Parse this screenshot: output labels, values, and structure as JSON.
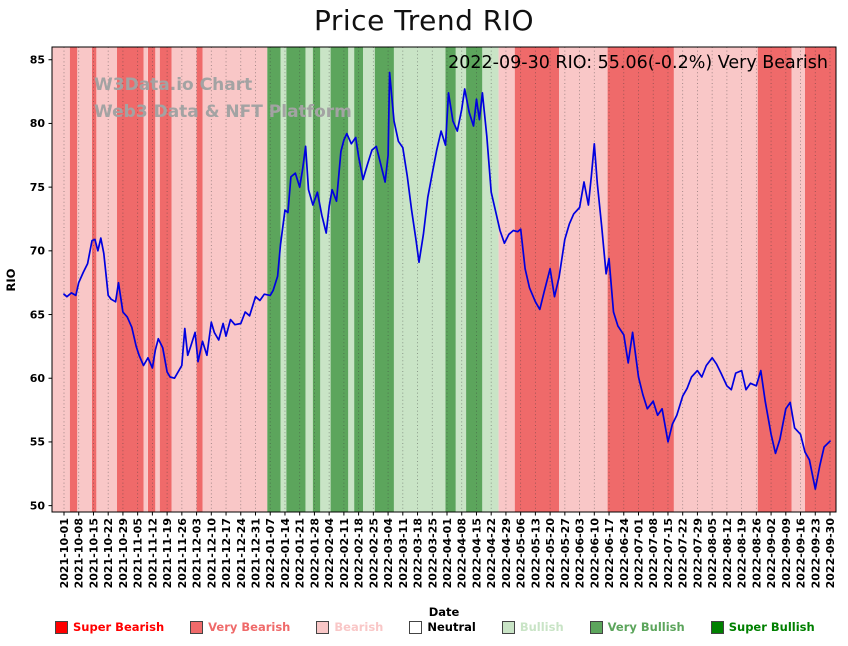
{
  "title": "Price Trend RIO",
  "annotation": "2022-09-30 RIO: 55.06(-0.2%) Very Bearish",
  "watermark": {
    "line1": "W3Data.io Chart",
    "line2": "Web3 Data & NFT Platform"
  },
  "chart_data": {
    "type": "line",
    "title": "Price Trend RIO",
    "xlabel": "Date",
    "ylabel": "RIO",
    "ylim": [
      49.5,
      86
    ],
    "yticks": [
      50,
      55,
      60,
      65,
      70,
      75,
      80,
      85
    ],
    "grid": "vertical-dotted",
    "legend_position": "bottom",
    "x_tick_labels": [
      "2021-10-01",
      "2021-10-08",
      "2021-10-15",
      "2021-10-22",
      "2021-10-29",
      "2021-11-05",
      "2021-11-12",
      "2021-11-19",
      "2021-11-26",
      "2021-12-03",
      "2021-12-10",
      "2021-12-17",
      "2021-12-24",
      "2021-12-31",
      "2022-01-07",
      "2022-01-14",
      "2022-01-21",
      "2022-01-28",
      "2022-02-04",
      "2022-02-11",
      "2022-02-18",
      "2022-02-25",
      "2022-03-04",
      "2022-03-11",
      "2022-03-18",
      "2022-03-25",
      "2022-04-01",
      "2022-04-08",
      "2022-04-15",
      "2022-04-22",
      "2022-04-29",
      "2022-05-06",
      "2022-05-13",
      "2022-05-20",
      "2022-05-27",
      "2022-06-03",
      "2022-06-10",
      "2022-06-17",
      "2022-06-24",
      "2022-07-01",
      "2022-07-08",
      "2022-07-15",
      "2022-07-22",
      "2022-07-29",
      "2022-08-05",
      "2022-08-12",
      "2022-08-19",
      "2022-08-26",
      "2022-09-02",
      "2022-09-09",
      "2022-09-16",
      "2022-09-23",
      "2022-09-30"
    ],
    "series": [
      {
        "name": "RIO",
        "color": "#0000e0",
        "points": [
          [
            0,
            66.6
          ],
          [
            0.2,
            66.4
          ],
          [
            0.5,
            66.7
          ],
          [
            0.8,
            66.5
          ],
          [
            1,
            67.5
          ],
          [
            1.3,
            68.3
          ],
          [
            1.6,
            69
          ],
          [
            1.9,
            70.8
          ],
          [
            2.1,
            70.9
          ],
          [
            2.3,
            70
          ],
          [
            2.5,
            71
          ],
          [
            2.7,
            69.8
          ],
          [
            3,
            66.5
          ],
          [
            3.2,
            66.2
          ],
          [
            3.5,
            66
          ],
          [
            3.7,
            67.5
          ],
          [
            4,
            65.2
          ],
          [
            4.3,
            64.8
          ],
          [
            4.6,
            64
          ],
          [
            4.9,
            62.5
          ],
          [
            5.1,
            61.8
          ],
          [
            5.4,
            61
          ],
          [
            5.7,
            61.6
          ],
          [
            6,
            60.8
          ],
          [
            6.2,
            62.2
          ],
          [
            6.4,
            63.1
          ],
          [
            6.7,
            62.4
          ],
          [
            7,
            60.5
          ],
          [
            7.2,
            60.1
          ],
          [
            7.5,
            60
          ],
          [
            7.8,
            60.6
          ],
          [
            8,
            61
          ],
          [
            8.2,
            63.9
          ],
          [
            8.4,
            61.8
          ],
          [
            8.6,
            62.5
          ],
          [
            8.9,
            63.6
          ],
          [
            9.1,
            61.3
          ],
          [
            9.4,
            62.9
          ],
          [
            9.7,
            61.8
          ],
          [
            10,
            64.4
          ],
          [
            10.2,
            63.6
          ],
          [
            10.5,
            63
          ],
          [
            10.8,
            64.3
          ],
          [
            11,
            63.3
          ],
          [
            11.3,
            64.6
          ],
          [
            11.6,
            64.2
          ],
          [
            12,
            64.3
          ],
          [
            12.3,
            65.2
          ],
          [
            12.6,
            64.9
          ],
          [
            13,
            66.4
          ],
          [
            13.3,
            66.1
          ],
          [
            13.6,
            66.6
          ],
          [
            14,
            66.5
          ],
          [
            14.2,
            66.9
          ],
          [
            14.5,
            68
          ],
          [
            14.7,
            70.5
          ],
          [
            15,
            73.2
          ],
          [
            15.2,
            73
          ],
          [
            15.4,
            75.8
          ],
          [
            15.7,
            76.1
          ],
          [
            16,
            75
          ],
          [
            16.2,
            76.4
          ],
          [
            16.4,
            78.2
          ],
          [
            16.6,
            74.8
          ],
          [
            16.9,
            73.6
          ],
          [
            17.2,
            74.6
          ],
          [
            17.5,
            72.8
          ],
          [
            17.8,
            71.4
          ],
          [
            18,
            73.5
          ],
          [
            18.2,
            74.8
          ],
          [
            18.5,
            73.9
          ],
          [
            18.8,
            77.8
          ],
          [
            19,
            78.7
          ],
          [
            19.2,
            79.2
          ],
          [
            19.5,
            78.4
          ],
          [
            19.8,
            78.9
          ],
          [
            20,
            77.4
          ],
          [
            20.3,
            75.6
          ],
          [
            20.6,
            76.8
          ],
          [
            20.9,
            77.9
          ],
          [
            21.2,
            78.2
          ],
          [
            21.5,
            76.8
          ],
          [
            21.8,
            75.4
          ],
          [
            22,
            77.5
          ],
          [
            22.1,
            84
          ],
          [
            22.4,
            80.2
          ],
          [
            22.7,
            78.6
          ],
          [
            23,
            78.1
          ],
          [
            23.3,
            75.9
          ],
          [
            23.6,
            73.2
          ],
          [
            23.9,
            70.8
          ],
          [
            24.1,
            69.1
          ],
          [
            24.4,
            71.3
          ],
          [
            24.7,
            74.2
          ],
          [
            25,
            76.1
          ],
          [
            25.3,
            77.9
          ],
          [
            25.6,
            79.4
          ],
          [
            25.9,
            78.3
          ],
          [
            26.1,
            82.4
          ],
          [
            26.4,
            80.2
          ],
          [
            26.7,
            79.4
          ],
          [
            27,
            81.1
          ],
          [
            27.2,
            82.7
          ],
          [
            27.5,
            80.9
          ],
          [
            27.8,
            79.8
          ],
          [
            28,
            81.9
          ],
          [
            28.2,
            80.3
          ],
          [
            28.4,
            82.4
          ],
          [
            28.7,
            79
          ],
          [
            29,
            74.6
          ],
          [
            29.3,
            73.1
          ],
          [
            29.6,
            71.6
          ],
          [
            29.9,
            70.6
          ],
          [
            30.2,
            71.3
          ],
          [
            30.5,
            71.6
          ],
          [
            30.8,
            71.5
          ],
          [
            31,
            71.7
          ],
          [
            31.3,
            68.6
          ],
          [
            31.6,
            67.1
          ],
          [
            32,
            66
          ],
          [
            32.3,
            65.4
          ],
          [
            32.6,
            66.8
          ],
          [
            33,
            68.6
          ],
          [
            33.3,
            66.4
          ],
          [
            33.6,
            67.9
          ],
          [
            34,
            70.9
          ],
          [
            34.3,
            72.1
          ],
          [
            34.6,
            72.9
          ],
          [
            35,
            73.4
          ],
          [
            35.3,
            75.4
          ],
          [
            35.6,
            73.6
          ],
          [
            35.8,
            75.9
          ],
          [
            36,
            78.4
          ],
          [
            36.2,
            75.3
          ],
          [
            36.5,
            71.9
          ],
          [
            36.8,
            68.2
          ],
          [
            37,
            69.4
          ],
          [
            37.3,
            65.2
          ],
          [
            37.6,
            64.1
          ],
          [
            38,
            63.4
          ],
          [
            38.3,
            61.2
          ],
          [
            38.6,
            63.6
          ],
          [
            39,
            60.1
          ],
          [
            39.3,
            58.7
          ],
          [
            39.6,
            57.6
          ],
          [
            40,
            58.2
          ],
          [
            40.3,
            57.1
          ],
          [
            40.6,
            57.6
          ],
          [
            41,
            55
          ],
          [
            41.3,
            56.4
          ],
          [
            41.6,
            57.1
          ],
          [
            42,
            58.6
          ],
          [
            42.3,
            59.2
          ],
          [
            42.6,
            60.1
          ],
          [
            43,
            60.6
          ],
          [
            43.3,
            60.1
          ],
          [
            43.6,
            61
          ],
          [
            44,
            61.6
          ],
          [
            44.3,
            61.1
          ],
          [
            44.6,
            60.4
          ],
          [
            45,
            59.4
          ],
          [
            45.3,
            59.1
          ],
          [
            45.6,
            60.4
          ],
          [
            46,
            60.6
          ],
          [
            46.3,
            59.1
          ],
          [
            46.6,
            59.6
          ],
          [
            47,
            59.4
          ],
          [
            47.3,
            60.6
          ],
          [
            47.6,
            58.2
          ],
          [
            48,
            55.6
          ],
          [
            48.3,
            54.1
          ],
          [
            48.6,
            55.2
          ],
          [
            49,
            57.6
          ],
          [
            49.3,
            58.1
          ],
          [
            49.6,
            56.1
          ],
          [
            50,
            55.6
          ],
          [
            50.3,
            54.2
          ],
          [
            50.6,
            53.6
          ],
          [
            51,
            51.3
          ],
          [
            51.3,
            53.1
          ],
          [
            51.6,
            54.6
          ],
          [
            52,
            55.06
          ]
        ]
      }
    ],
    "sentiment_colors": {
      "super_bearish": "#ff0000",
      "very_bearish": "#ef6a6a",
      "bearish": "#f9c7c7",
      "neutral": "#ffffff",
      "bullish": "#c9e4c6",
      "very_bullish": "#5ca55c",
      "super_bullish": "#008000"
    },
    "background_bands": [
      {
        "from": -0.8,
        "to": 0.4,
        "level": "bearish"
      },
      {
        "from": 0.4,
        "to": 0.9,
        "level": "very_bearish"
      },
      {
        "from": 0.9,
        "to": 1.9,
        "level": "bearish"
      },
      {
        "from": 1.9,
        "to": 2.2,
        "level": "very_bearish"
      },
      {
        "from": 2.2,
        "to": 3.6,
        "level": "bearish"
      },
      {
        "from": 3.6,
        "to": 5.4,
        "level": "very_bearish"
      },
      {
        "from": 5.4,
        "to": 5.7,
        "level": "bearish"
      },
      {
        "from": 5.7,
        "to": 6.2,
        "level": "very_bearish"
      },
      {
        "from": 6.2,
        "to": 6.5,
        "level": "bearish"
      },
      {
        "from": 6.5,
        "to": 7.3,
        "level": "very_bearish"
      },
      {
        "from": 7.3,
        "to": 9.0,
        "level": "bearish"
      },
      {
        "from": 9.0,
        "to": 9.4,
        "level": "very_bearish"
      },
      {
        "from": 9.4,
        "to": 13.8,
        "level": "bearish"
      },
      {
        "from": 13.8,
        "to": 14.7,
        "level": "very_bullish"
      },
      {
        "from": 14.7,
        "to": 15.1,
        "level": "bullish"
      },
      {
        "from": 15.1,
        "to": 16.4,
        "level": "very_bullish"
      },
      {
        "from": 16.4,
        "to": 16.9,
        "level": "bullish"
      },
      {
        "from": 16.9,
        "to": 17.4,
        "level": "very_bullish"
      },
      {
        "from": 17.4,
        "to": 18.1,
        "level": "bullish"
      },
      {
        "from": 18.1,
        "to": 19.3,
        "level": "very_bullish"
      },
      {
        "from": 19.3,
        "to": 19.7,
        "level": "bullish"
      },
      {
        "from": 19.7,
        "to": 20.3,
        "level": "very_bullish"
      },
      {
        "from": 20.3,
        "to": 21.1,
        "level": "bullish"
      },
      {
        "from": 21.1,
        "to": 22.4,
        "level": "very_bullish"
      },
      {
        "from": 22.4,
        "to": 25.9,
        "level": "bullish"
      },
      {
        "from": 25.9,
        "to": 26.6,
        "level": "very_bullish"
      },
      {
        "from": 26.6,
        "to": 27.3,
        "level": "bullish"
      },
      {
        "from": 27.3,
        "to": 28.4,
        "level": "very_bullish"
      },
      {
        "from": 28.4,
        "to": 29.5,
        "level": "bullish"
      },
      {
        "from": 29.5,
        "to": 30.6,
        "level": "bearish"
      },
      {
        "from": 30.6,
        "to": 33.6,
        "level": "very_bearish"
      },
      {
        "from": 33.6,
        "to": 36.9,
        "level": "bearish"
      },
      {
        "from": 36.9,
        "to": 41.4,
        "level": "very_bearish"
      },
      {
        "from": 41.4,
        "to": 47.1,
        "level": "bearish"
      },
      {
        "from": 47.1,
        "to": 49.4,
        "level": "very_bearish"
      },
      {
        "from": 49.4,
        "to": 50.3,
        "level": "bearish"
      },
      {
        "from": 50.3,
        "to": 52.4,
        "level": "very_bearish"
      }
    ],
    "legend": [
      {
        "label": "Super Bearish",
        "level": "super_bearish"
      },
      {
        "label": "Very Bearish",
        "level": "very_bearish"
      },
      {
        "label": "Bearish",
        "level": "bearish"
      },
      {
        "label": "Neutral",
        "level": "neutral"
      },
      {
        "label": "Bullish",
        "level": "bullish"
      },
      {
        "label": "Very Bullish",
        "level": "very_bullish"
      },
      {
        "label": "Super Bullish",
        "level": "super_bullish"
      }
    ]
  }
}
